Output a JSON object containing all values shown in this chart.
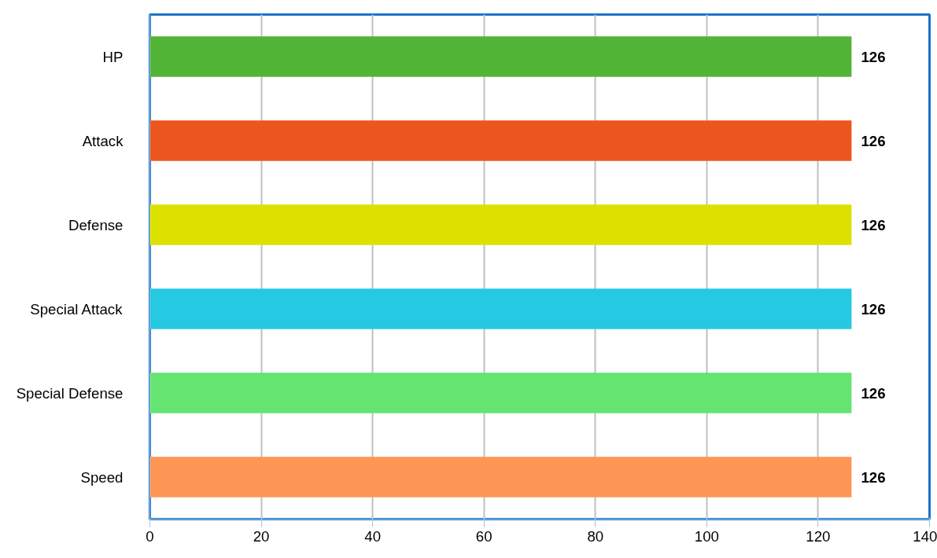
{
  "chart_data": {
    "type": "bar",
    "orientation": "horizontal",
    "categories": [
      "HP",
      "Attack",
      "Defense",
      "Special Attack",
      "Special Defense",
      "Speed"
    ],
    "values": [
      126,
      126,
      126,
      126,
      126,
      126
    ],
    "colors": [
      "#52b436",
      "#ec561e",
      "#dde100",
      "#25c9e2",
      "#65e472",
      "#fe9656"
    ],
    "xlim": [
      0,
      140
    ],
    "xticks": [
      0,
      20,
      40,
      60,
      80,
      100,
      120,
      140
    ],
    "grid": "x",
    "data_labels": true
  }
}
